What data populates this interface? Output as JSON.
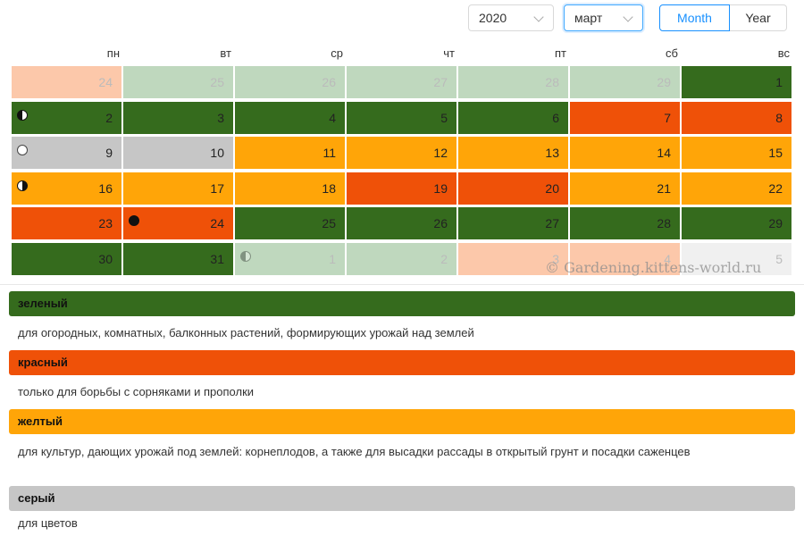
{
  "toolbar": {
    "year": "2020",
    "month": "март",
    "mode_month": "Month",
    "mode_year": "Year"
  },
  "colors": {
    "green": "#356b1d",
    "red": "#ef5108",
    "yellow": "#ffa508",
    "gray": "#c6c6c6",
    "pale_green": "#bfd8be",
    "pale_peach": "#fcc8aa",
    "pale_gray": "#f0f0f0"
  },
  "calendar": {
    "weekdays": [
      "пн",
      "вт",
      "ср",
      "чт",
      "пт",
      "сб",
      "вс"
    ],
    "weeks": [
      [
        {
          "day": "24",
          "color": "pale_peach",
          "other": true
        },
        {
          "day": "25",
          "color": "pale_green",
          "other": true
        },
        {
          "day": "26",
          "color": "pale_green",
          "other": true
        },
        {
          "day": "27",
          "color": "pale_green",
          "other": true
        },
        {
          "day": "28",
          "color": "pale_green",
          "other": true
        },
        {
          "day": "29",
          "color": "pale_green",
          "other": true
        },
        {
          "day": "1",
          "color": "green"
        }
      ],
      [
        {
          "day": "2",
          "color": "green",
          "moon": "first"
        },
        {
          "day": "3",
          "color": "green"
        },
        {
          "day": "4",
          "color": "green"
        },
        {
          "day": "5",
          "color": "green"
        },
        {
          "day": "6",
          "color": "green"
        },
        {
          "day": "7",
          "color": "red"
        },
        {
          "day": "8",
          "color": "red"
        }
      ],
      [
        {
          "day": "9",
          "color": "gray",
          "moon": "full"
        },
        {
          "day": "10",
          "color": "gray"
        },
        {
          "day": "11",
          "color": "yellow"
        },
        {
          "day": "12",
          "color": "yellow"
        },
        {
          "day": "13",
          "color": "yellow"
        },
        {
          "day": "14",
          "color": "yellow"
        },
        {
          "day": "15",
          "color": "yellow"
        }
      ],
      [
        {
          "day": "16",
          "color": "yellow",
          "moon": "last"
        },
        {
          "day": "17",
          "color": "yellow"
        },
        {
          "day": "18",
          "color": "yellow"
        },
        {
          "day": "19",
          "color": "red"
        },
        {
          "day": "20",
          "color": "red"
        },
        {
          "day": "21",
          "color": "yellow"
        },
        {
          "day": "22",
          "color": "yellow"
        }
      ],
      [
        {
          "day": "23",
          "color": "red"
        },
        {
          "day": "24",
          "color": "red",
          "moon": "new"
        },
        {
          "day": "25",
          "color": "green"
        },
        {
          "day": "26",
          "color": "green"
        },
        {
          "day": "27",
          "color": "green"
        },
        {
          "day": "28",
          "color": "green"
        },
        {
          "day": "29",
          "color": "green"
        }
      ],
      [
        {
          "day": "30",
          "color": "green"
        },
        {
          "day": "31",
          "color": "green"
        },
        {
          "day": "1",
          "color": "pale_green",
          "other": true,
          "moon": "first"
        },
        {
          "day": "2",
          "color": "pale_green",
          "other": true
        },
        {
          "day": "3",
          "color": "pale_peach",
          "other": true
        },
        {
          "day": "4",
          "color": "pale_peach",
          "other": true
        },
        {
          "day": "5",
          "color": "pale_gray",
          "other": true
        }
      ]
    ]
  },
  "watermark": "© Gardening.kittens-world.ru",
  "legend": [
    {
      "label": "зеленый",
      "color": "green",
      "text": "для огородных, комнатных, балконных растений, формирующих урожай над землей"
    },
    {
      "label": "красный",
      "color": "red",
      "text": "только для борьбы с сорняками и прополки"
    },
    {
      "label": "желтый",
      "color": "yellow",
      "text": "для культур, дающих урожай под землей: корнеплодов, а также для высадки рассады в открытый грунт и посадки саженцев"
    },
    {
      "label": "серый",
      "color": "gray",
      "text": "для цветов"
    }
  ]
}
